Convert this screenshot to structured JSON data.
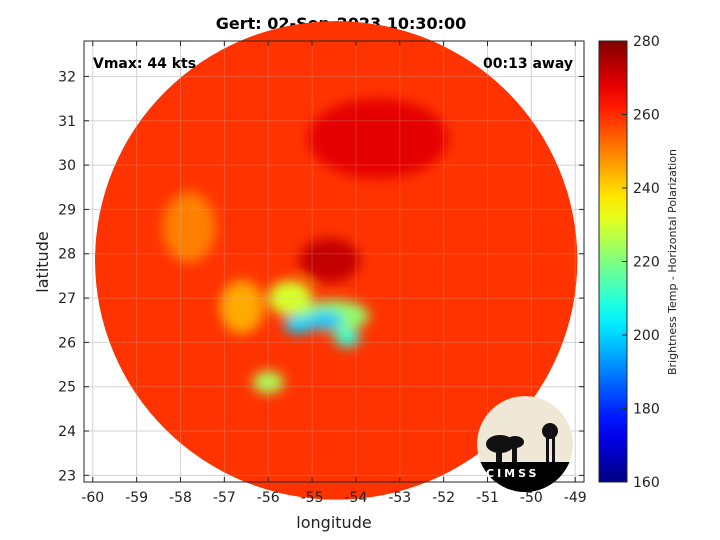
{
  "chart_data": {
    "type": "heatmap",
    "title": "Gert: 02-Sep-2023 10:30:00",
    "xlabel": "longitude",
    "ylabel": "latitude",
    "xlim": [
      -60.2,
      -48.8
    ],
    "ylim": [
      22.85,
      32.8
    ],
    "xticks": [
      -60,
      -59,
      -58,
      -57,
      -56,
      -55,
      -54,
      -53,
      -52,
      -51,
      -50,
      -49
    ],
    "yticks": [
      23,
      24,
      25,
      26,
      27,
      28,
      29,
      30,
      31,
      32
    ],
    "grid": true,
    "swath": {
      "center_lon": -54.45,
      "center_lat": 27.85,
      "radius_lon": 5.5,
      "radius_lat": 5.4
    },
    "background_value": 259,
    "colorbar": {
      "label": "Brightness Temp - Horizontal Polarization",
      "min": 160,
      "max": 280,
      "ticks": [
        160,
        180,
        200,
        220,
        240,
        260,
        280
      ],
      "colormap": "jet"
    },
    "features": [
      {
        "name": "eye / cold core",
        "lon": -54.6,
        "lat": 27.85,
        "value": 272,
        "spread_lon": 0.7,
        "spread_lat": 0.5
      },
      {
        "name": "northern dark band",
        "lon": -53.5,
        "lat": 30.6,
        "value": 268,
        "spread_lon": 1.6,
        "spread_lat": 0.9
      },
      {
        "name": "rainband warm",
        "lon": -55.5,
        "lat": 27.0,
        "value": 230,
        "spread_lon": 0.5,
        "spread_lat": 0.4
      },
      {
        "name": "rainband warm",
        "lon": -54.5,
        "lat": 26.6,
        "value": 222,
        "spread_lon": 0.8,
        "spread_lat": 0.35
      },
      {
        "name": "convective core",
        "lon": -55.3,
        "lat": 26.4,
        "value": 200,
        "spread_lon": 0.35,
        "spread_lat": 0.2
      },
      {
        "name": "convective core",
        "lon": -54.7,
        "lat": 26.5,
        "value": 198,
        "spread_lon": 0.4,
        "spread_lat": 0.2
      },
      {
        "name": "convective core",
        "lon": -54.2,
        "lat": 26.1,
        "value": 210,
        "spread_lon": 0.3,
        "spread_lat": 0.2
      },
      {
        "name": "southern cell",
        "lon": -56.0,
        "lat": 25.1,
        "value": 225,
        "spread_lon": 0.35,
        "spread_lat": 0.25
      },
      {
        "name": "warm patch",
        "lon": -56.6,
        "lat": 26.8,
        "value": 245,
        "spread_lon": 0.5,
        "spread_lat": 0.6
      },
      {
        "name": "warm patch",
        "lon": -57.8,
        "lat": 28.6,
        "value": 250,
        "spread_lon": 0.6,
        "spread_lat": 0.8
      }
    ]
  },
  "overlay": {
    "vmax": "Vmax: 44 kts",
    "time_away": "00:13 away"
  },
  "logo": {
    "text": "CIMSS"
  }
}
